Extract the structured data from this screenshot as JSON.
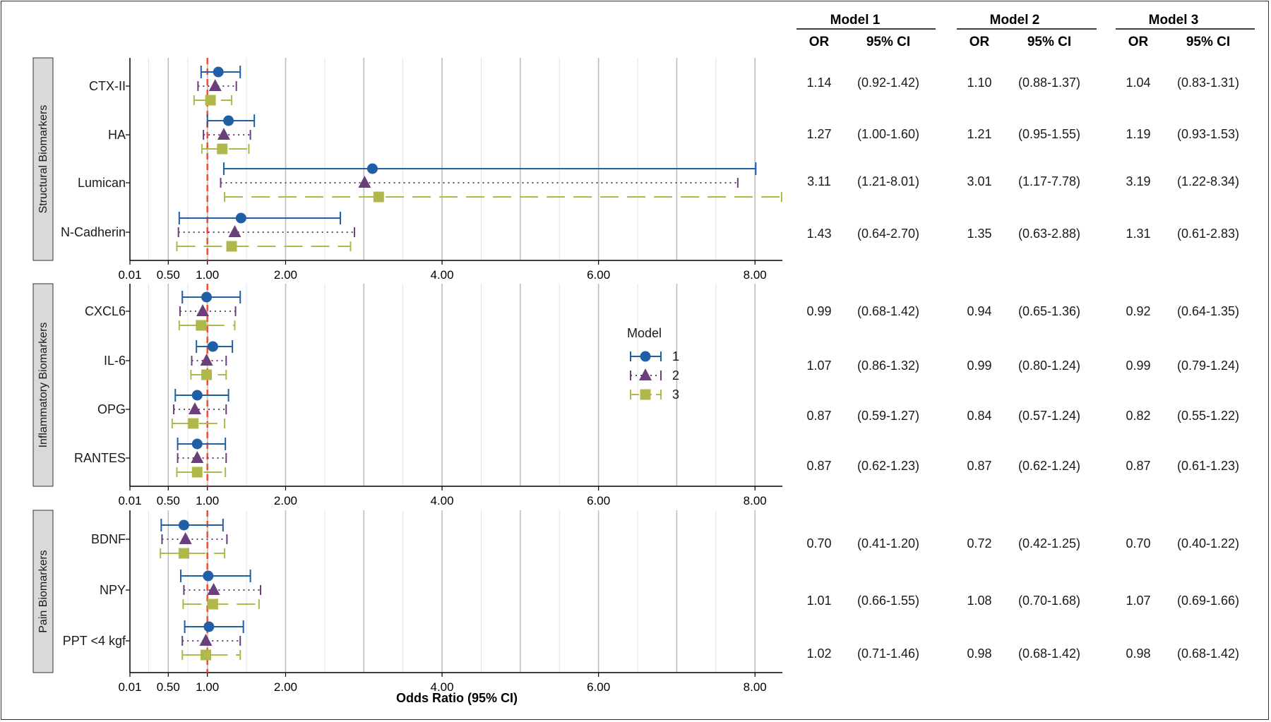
{
  "chart_data": {
    "type": "forest",
    "xlabel": "Odds Ratio (95% CI)",
    "x_ticks": [
      0.01,
      0.5,
      1.0,
      2.0,
      4.0,
      6.0,
      8.0
    ],
    "x_tick_labels": [
      "0.01",
      "0.50",
      "1.00",
      "2.00",
      "4.00",
      "6.00",
      "8.00"
    ],
    "x_range": [
      0.01,
      8.35
    ],
    "reference_line": 1.0,
    "legend": {
      "title": "Model",
      "placement": "right of plots",
      "entries": [
        {
          "label": "1",
          "color": "#1f5fa6",
          "shape": "circle",
          "line": "solid"
        },
        {
          "label": "2",
          "color": "#6b3f7a",
          "shape": "triangle",
          "line": "dotted"
        },
        {
          "label": "3",
          "color": "#b0b84a",
          "shape": "square",
          "line": "dashed"
        }
      ]
    },
    "table_header": {
      "models": [
        "Model 1",
        "Model 2",
        "Model 3"
      ],
      "or_label": "OR",
      "ci_label": "95% CI"
    },
    "panels": [
      {
        "strip": "Structural Biomarkers",
        "rows": [
          {
            "label": "CTX-II",
            "models": [
              {
                "or": 1.14,
                "lo": 0.92,
                "hi": 1.42,
                "or_text": "1.14",
                "ci_text": "(0.92-1.42)"
              },
              {
                "or": 1.1,
                "lo": 0.88,
                "hi": 1.37,
                "or_text": "1.10",
                "ci_text": "(0.88-1.37)"
              },
              {
                "or": 1.04,
                "lo": 0.83,
                "hi": 1.31,
                "or_text": "1.04",
                "ci_text": "(0.83-1.31)"
              }
            ]
          },
          {
            "label": "HA",
            "models": [
              {
                "or": 1.27,
                "lo": 1.0,
                "hi": 1.6,
                "or_text": "1.27",
                "ci_text": "(1.00-1.60)"
              },
              {
                "or": 1.21,
                "lo": 0.95,
                "hi": 1.55,
                "or_text": "1.21",
                "ci_text": "(0.95-1.55)"
              },
              {
                "or": 1.19,
                "lo": 0.93,
                "hi": 1.53,
                "or_text": "1.19",
                "ci_text": "(0.93-1.53)"
              }
            ]
          },
          {
            "label": "Lumican",
            "models": [
              {
                "or": 3.11,
                "lo": 1.21,
                "hi": 8.01,
                "or_text": "3.11",
                "ci_text": "(1.21-8.01)"
              },
              {
                "or": 3.01,
                "lo": 1.17,
                "hi": 7.78,
                "or_text": "3.01",
                "ci_text": "(1.17-7.78)"
              },
              {
                "or": 3.19,
                "lo": 1.22,
                "hi": 8.34,
                "or_text": "3.19",
                "ci_text": "(1.22-8.34)"
              }
            ]
          },
          {
            "label": "N-Cadherin",
            "models": [
              {
                "or": 1.43,
                "lo": 0.64,
                "hi": 2.7,
                "or_text": "1.43",
                "ci_text": "(0.64-2.70)"
              },
              {
                "or": 1.35,
                "lo": 0.63,
                "hi": 2.88,
                "or_text": "1.35",
                "ci_text": "(0.63-2.88)"
              },
              {
                "or": 1.31,
                "lo": 0.61,
                "hi": 2.83,
                "or_text": "1.31",
                "ci_text": "(0.61-2.83)"
              }
            ]
          }
        ]
      },
      {
        "strip": "Inflammatory Biomarkers",
        "rows": [
          {
            "label": "CXCL6",
            "models": [
              {
                "or": 0.99,
                "lo": 0.68,
                "hi": 1.42,
                "or_text": "0.99",
                "ci_text": "(0.68-1.42)"
              },
              {
                "or": 0.94,
                "lo": 0.65,
                "hi": 1.36,
                "or_text": "0.94",
                "ci_text": "(0.65-1.36)"
              },
              {
                "or": 0.92,
                "lo": 0.64,
                "hi": 1.35,
                "or_text": "0.92",
                "ci_text": "(0.64-1.35)"
              }
            ]
          },
          {
            "label": "IL-6",
            "models": [
              {
                "or": 1.07,
                "lo": 0.86,
                "hi": 1.32,
                "or_text": "1.07",
                "ci_text": "(0.86-1.32)"
              },
              {
                "or": 0.99,
                "lo": 0.8,
                "hi": 1.24,
                "or_text": "0.99",
                "ci_text": "(0.80-1.24)"
              },
              {
                "or": 0.99,
                "lo": 0.79,
                "hi": 1.24,
                "or_text": "0.99",
                "ci_text": "(0.79-1.24)"
              }
            ]
          },
          {
            "label": "OPG",
            "models": [
              {
                "or": 0.87,
                "lo": 0.59,
                "hi": 1.27,
                "or_text": "0.87",
                "ci_text": "(0.59-1.27)"
              },
              {
                "or": 0.84,
                "lo": 0.57,
                "hi": 1.24,
                "or_text": "0.84",
                "ci_text": "(0.57-1.24)"
              },
              {
                "or": 0.82,
                "lo": 0.55,
                "hi": 1.22,
                "or_text": "0.82",
                "ci_text": "(0.55-1.22)"
              }
            ]
          },
          {
            "label": "RANTES",
            "models": [
              {
                "or": 0.87,
                "lo": 0.62,
                "hi": 1.23,
                "or_text": "0.87",
                "ci_text": "(0.62-1.23)"
              },
              {
                "or": 0.87,
                "lo": 0.62,
                "hi": 1.24,
                "or_text": "0.87",
                "ci_text": "(0.62-1.24)"
              },
              {
                "or": 0.87,
                "lo": 0.61,
                "hi": 1.23,
                "or_text": "0.87",
                "ci_text": "(0.61-1.23)"
              }
            ]
          }
        ]
      },
      {
        "strip": "Pain Biomarkers",
        "rows": [
          {
            "label": "BDNF",
            "models": [
              {
                "or": 0.7,
                "lo": 0.41,
                "hi": 1.2,
                "or_text": "0.70",
                "ci_text": "(0.41-1.20)"
              },
              {
                "or": 0.72,
                "lo": 0.42,
                "hi": 1.25,
                "or_text": "0.72",
                "ci_text": "(0.42-1.25)"
              },
              {
                "or": 0.7,
                "lo": 0.4,
                "hi": 1.22,
                "or_text": "0.70",
                "ci_text": "(0.40-1.22)"
              }
            ]
          },
          {
            "label": "NPY",
            "models": [
              {
                "or": 1.01,
                "lo": 0.66,
                "hi": 1.55,
                "or_text": "1.01",
                "ci_text": "(0.66-1.55)"
              },
              {
                "or": 1.08,
                "lo": 0.7,
                "hi": 1.68,
                "or_text": "1.08",
                "ci_text": "(0.70-1.68)"
              },
              {
                "or": 1.07,
                "lo": 0.69,
                "hi": 1.66,
                "or_text": "1.07",
                "ci_text": "(0.69-1.66)"
              }
            ]
          },
          {
            "label": "PPT <4 kgf",
            "models": [
              {
                "or": 1.02,
                "lo": 0.71,
                "hi": 1.46,
                "or_text": "1.02",
                "ci_text": "(0.71-1.46)"
              },
              {
                "or": 0.98,
                "lo": 0.68,
                "hi": 1.42,
                "or_text": "0.98",
                "ci_text": "(0.68-1.42)"
              },
              {
                "or": 0.98,
                "lo": 0.68,
                "hi": 1.42,
                "or_text": "0.98",
                "ci_text": "(0.68-1.42)"
              }
            ]
          }
        ]
      }
    ]
  }
}
